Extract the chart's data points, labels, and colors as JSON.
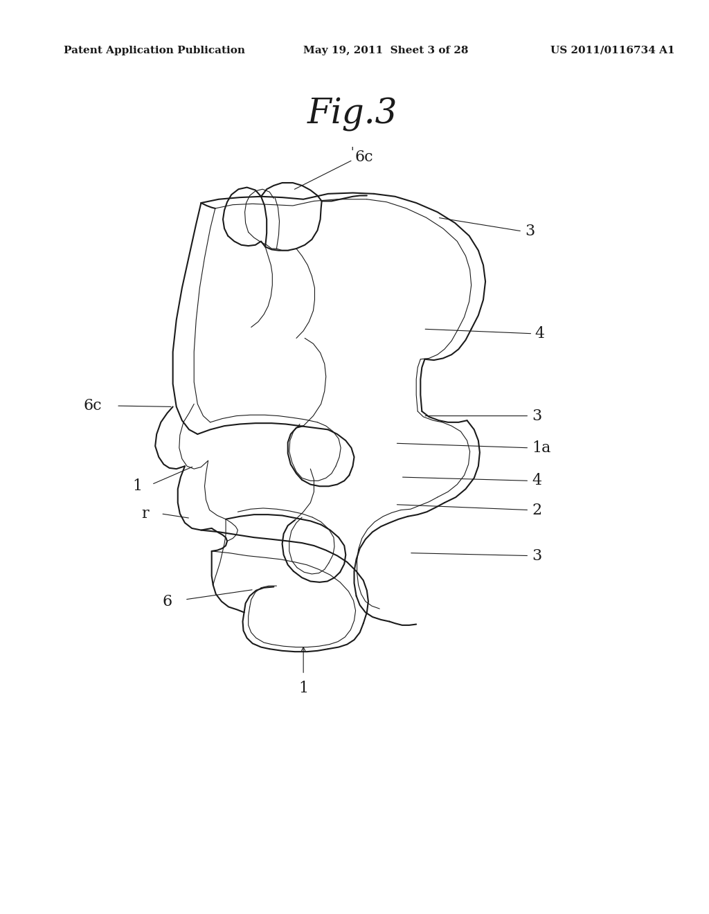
{
  "background_color": "#ffffff",
  "header_left": "Patent Application Publication",
  "header_center": "May 19, 2011  Sheet 3 of 28",
  "header_right": "US 2011/0116734 A1",
  "figure_title": "Fig.3",
  "header_fontsize": 11,
  "title_fontsize": 36,
  "label_fontsize": 16
}
